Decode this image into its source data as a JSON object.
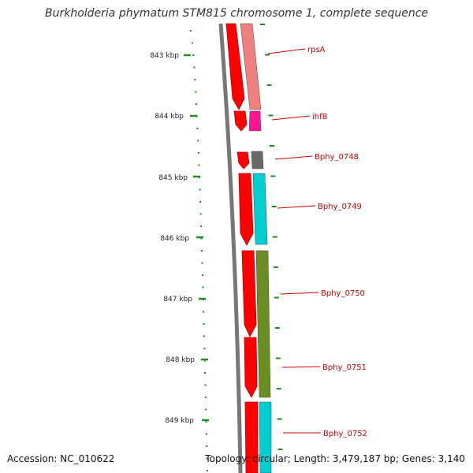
{
  "title": "Burkholderia phymatum STM815 chromosome 1, complete sequence",
  "footer": {
    "accession": "Accession: NC_010622",
    "summary": "Topology: circular; Length: 3,479,187 bp; Genes: 3,140"
  },
  "axis": {
    "ticks": [
      "843 kbp",
      "844 kbp",
      "845 kbp",
      "846 kbp",
      "847 kbp",
      "848 kbp",
      "849 kbp"
    ]
  },
  "genes": [
    {
      "name": "rpsA",
      "color": "#f08080"
    },
    {
      "name": "ihfB",
      "color": "#ff1493"
    },
    {
      "name": "Bphy_0748",
      "color": "#696969"
    },
    {
      "name": "Bphy_0749",
      "color": "#00ced1"
    },
    {
      "name": "Bphy_0750",
      "color": "#6b8e23"
    },
    {
      "name": "Bphy_0751",
      "color": "#6b8e23"
    },
    {
      "name": "Bphy_0752",
      "color": "#00ced1"
    }
  ],
  "colors": {
    "forward_strand": "#ff0000",
    "label": "#cc0000",
    "tick": "#228b22",
    "backbone": "#808080"
  }
}
